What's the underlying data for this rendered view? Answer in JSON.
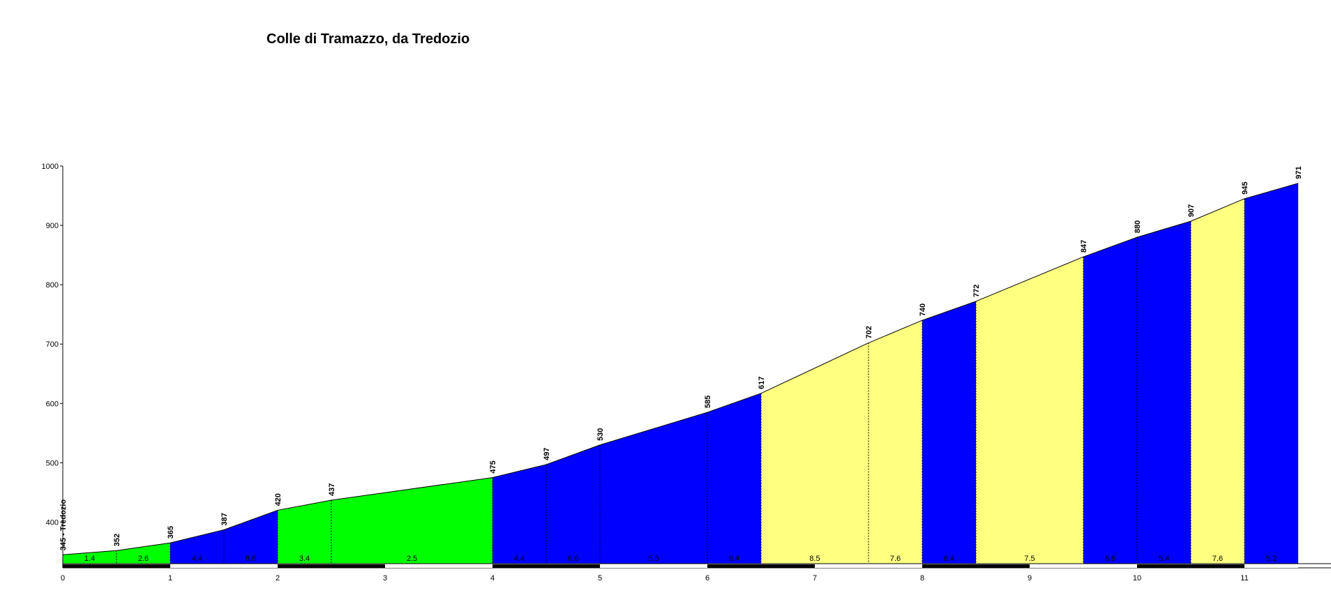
{
  "chart_data": {
    "type": "area",
    "title": "Colle di Tramazzo, da Tredozio",
    "xlabel": "",
    "ylabel": "",
    "xlim": [
      0,
      11.5
    ],
    "ylim": [
      330,
      1000
    ],
    "yticks": [
      400,
      500,
      600,
      700,
      800,
      900,
      1000
    ],
    "xticks": [
      0,
      1,
      2,
      3,
      4,
      5,
      6,
      7,
      8,
      9,
      10,
      11
    ],
    "points": [
      {
        "x": 0,
        "y": 345,
        "label": "345 - Tredozio"
      },
      {
        "x": 0.5,
        "y": 352,
        "label": "352"
      },
      {
        "x": 1,
        "y": 365,
        "label": "365"
      },
      {
        "x": 1.5,
        "y": 387,
        "label": "387"
      },
      {
        "x": 2,
        "y": 420,
        "label": "420"
      },
      {
        "x": 2.5,
        "y": 437,
        "label": "437"
      },
      {
        "x": 4,
        "y": 475,
        "label": "475"
      },
      {
        "x": 4.5,
        "y": 497,
        "label": "497"
      },
      {
        "x": 5,
        "y": 530,
        "label": "530"
      },
      {
        "x": 6,
        "y": 585,
        "label": "585"
      },
      {
        "x": 6.5,
        "y": 617,
        "label": "617"
      },
      {
        "x": 7.5,
        "y": 702,
        "label": "702"
      },
      {
        "x": 8,
        "y": 740,
        "label": "740"
      },
      {
        "x": 8.5,
        "y": 772,
        "label": "772"
      },
      {
        "x": 9.5,
        "y": 847,
        "label": "847"
      },
      {
        "x": 10,
        "y": 880,
        "label": "880"
      },
      {
        "x": 10.5,
        "y": 907,
        "label": "907"
      },
      {
        "x": 11,
        "y": 945,
        "label": "945"
      },
      {
        "x": 11.5,
        "y": 971,
        "label": "971"
      }
    ],
    "segments": [
      {
        "from": 0,
        "to": 0.5,
        "grade": "1.4",
        "color": "#00ff00"
      },
      {
        "from": 0.5,
        "to": 1,
        "grade": "2.6",
        "color": "#00ff00"
      },
      {
        "from": 1,
        "to": 1.5,
        "grade": "4.4",
        "color": "#0000ff"
      },
      {
        "from": 1.5,
        "to": 2,
        "grade": "6.6",
        "color": "#0000ff"
      },
      {
        "from": 2,
        "to": 2.5,
        "grade": "3.4",
        "color": "#00ff00"
      },
      {
        "from": 2.5,
        "to": 4,
        "grade": "2.5",
        "color": "#00ff00"
      },
      {
        "from": 4,
        "to": 4.5,
        "grade": "4.4",
        "color": "#0000ff"
      },
      {
        "from": 4.5,
        "to": 5,
        "grade": "6.6",
        "color": "#0000ff"
      },
      {
        "from": 5,
        "to": 6,
        "grade": "5.5",
        "color": "#0000ff"
      },
      {
        "from": 6,
        "to": 6.5,
        "grade": "6.4",
        "color": "#0000ff"
      },
      {
        "from": 6.5,
        "to": 7.5,
        "grade": "8.5",
        "color": "#ffff80"
      },
      {
        "from": 7.5,
        "to": 8,
        "grade": "7.6",
        "color": "#ffff80"
      },
      {
        "from": 8,
        "to": 8.5,
        "grade": "6.4",
        "color": "#0000ff"
      },
      {
        "from": 8.5,
        "to": 9.5,
        "grade": "7.5",
        "color": "#ffff80"
      },
      {
        "from": 9.5,
        "to": 10,
        "grade": "6.6",
        "color": "#0000ff"
      },
      {
        "from": 10,
        "to": 10.5,
        "grade": "5.4",
        "color": "#0000ff"
      },
      {
        "from": 10.5,
        "to": 11,
        "grade": "7.6",
        "color": "#ffff80"
      },
      {
        "from": 11,
        "to": 11.5,
        "grade": "5.2",
        "color": "#0000ff"
      }
    ],
    "grid": false
  }
}
